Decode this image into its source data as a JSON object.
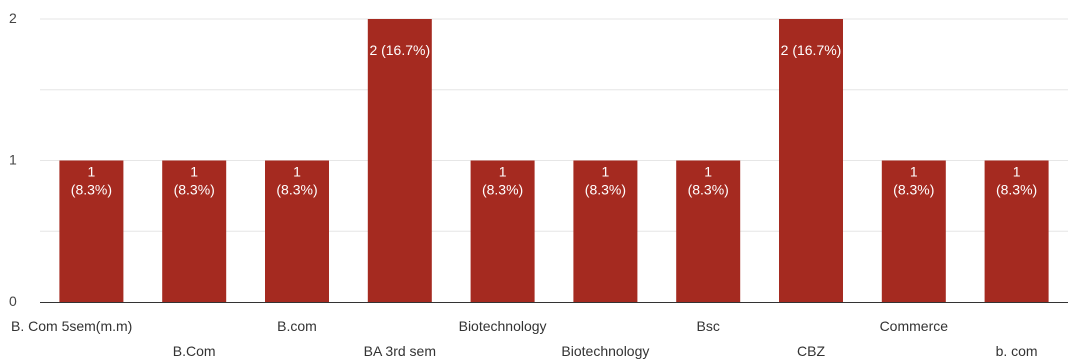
{
  "chart_data": {
    "type": "bar",
    "categories": [
      "B. Com 5sem(m.m)",
      "B.Com",
      "B.com",
      "BA 3rd sem",
      "Biotechnology",
      "Biotechnology",
      "Bsc",
      "CBZ",
      "Commerce",
      "b. com"
    ],
    "values": [
      1,
      1,
      1,
      2,
      1,
      1,
      1,
      2,
      1,
      1
    ],
    "data_labels": [
      [
        "1",
        "(8.3%)"
      ],
      [
        "1",
        "(8.3%)"
      ],
      [
        "1",
        "(8.3%)"
      ],
      [
        "2 (16.7%)"
      ],
      [
        "1",
        "(8.3%)"
      ],
      [
        "1",
        "(8.3%)"
      ],
      [
        "1",
        "(8.3%)"
      ],
      [
        "2 (16.7%)"
      ],
      [
        "1",
        "(8.3%)"
      ],
      [
        "1",
        "(8.3%)"
      ]
    ],
    "y_ticks": [
      "0",
      "1",
      "2"
    ],
    "ylim": [
      0,
      2
    ],
    "grid": true,
    "bar_color": "#a52a20",
    "grid_color": "#e6e6e6",
    "axis_color": "#333333"
  }
}
